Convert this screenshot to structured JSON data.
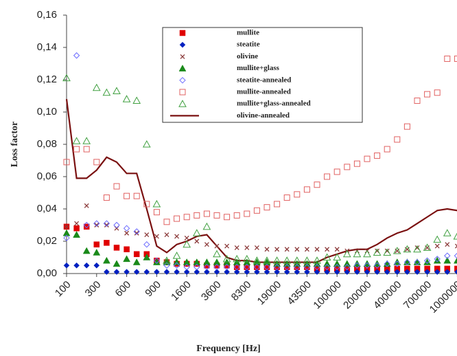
{
  "chart_data": {
    "type": "line",
    "y_label": "Loss factor",
    "x_label": "Frequency [Hz]",
    "categories": [
      "100",
      null,
      null,
      "300",
      null,
      null,
      "600",
      null,
      null,
      "900",
      null,
      null,
      "1600",
      null,
      null,
      "3600",
      null,
      null,
      "8300",
      null,
      null,
      "19000",
      null,
      null,
      "43500",
      null,
      null,
      "100000",
      null,
      null,
      "200000",
      null,
      null,
      "400000",
      null,
      null,
      "700000",
      null,
      null,
      "1000000"
    ],
    "ylim": [
      0,
      0.16
    ],
    "yticks": [
      {
        "value": 0,
        "label": "0,00"
      },
      {
        "value": 0.02,
        "label": "0,02"
      },
      {
        "value": 0.04,
        "label": "0,04"
      },
      {
        "value": 0.06,
        "label": "0,06"
      },
      {
        "value": 0.08,
        "label": "0,08"
      },
      {
        "value": 0.1,
        "label": "0,10"
      },
      {
        "value": 0.12,
        "label": "0,12"
      },
      {
        "value": 0.14,
        "label": "0,14"
      },
      {
        "value": 0.16,
        "label": "0,16"
      }
    ],
    "grid": false,
    "legend": "top-center",
    "series": [
      {
        "name": "mullite",
        "color": "#e00000",
        "marker": "square",
        "values": [
          0.029,
          0.028,
          0.029,
          0.018,
          0.019,
          0.016,
          0.015,
          0.012,
          0.012,
          0.008,
          0.007,
          0.006,
          0.006,
          0.006,
          0.005,
          0.005,
          0.005,
          0.004,
          0.004,
          0.004,
          0.004,
          0.004,
          0.004,
          0.004,
          0.004,
          0.003,
          0.003,
          0.003,
          0.003,
          0.003,
          0.003,
          0.003,
          0.003,
          0.003,
          0.003,
          0.003,
          0.003,
          0.003,
          0.003,
          0.003
        ]
      },
      {
        "name": "steatite",
        "color": "#0020c0",
        "marker": "diamond",
        "values": [
          0.005,
          0.005,
          0.005,
          0.005,
          0.001,
          0.001,
          0.001,
          0.001,
          0.001,
          0.001,
          0.001,
          0.001,
          0.001,
          0.001,
          0.001,
          0.001,
          0.001,
          0.001,
          0.001,
          0.001,
          0.001,
          0.001,
          0.001,
          0.001,
          0.001,
          0.001,
          0.001,
          0.001,
          0.001,
          0.001,
          0.001,
          0.001,
          0.001,
          0.001,
          0.001,
          0.001,
          0.001,
          0.001,
          0.001,
          0.001
        ]
      },
      {
        "name": "olivine",
        "color": "#8b3a3a",
        "marker": "cross",
        "values": [
          0.029,
          0.031,
          0.042,
          0.03,
          0.03,
          0.028,
          0.025,
          0.025,
          0.024,
          0.023,
          0.024,
          0.023,
          0.022,
          0.02,
          0.018,
          0.017,
          0.017,
          0.016,
          0.016,
          0.016,
          0.015,
          0.015,
          0.015,
          0.015,
          0.015,
          0.015,
          0.015,
          0.015,
          0.014,
          0.014,
          0.014,
          0.014,
          0.014,
          0.014,
          0.015,
          0.016,
          0.016,
          0.017,
          0.018,
          0.017
        ]
      },
      {
        "name": "mullite+glass",
        "color": "#1a8a1a",
        "marker": "triangle",
        "values": [
          0.025,
          0.024,
          0.014,
          0.013,
          0.008,
          0.006,
          0.009,
          0.007,
          0.01,
          0.007,
          0.007,
          0.007,
          0.007,
          0.007,
          0.007,
          0.007,
          0.007,
          0.007,
          0.007,
          0.007,
          0.007,
          0.006,
          0.006,
          0.006,
          0.006,
          0.006,
          0.006,
          0.006,
          0.006,
          0.006,
          0.006,
          0.006,
          0.006,
          0.007,
          0.007,
          0.007,
          0.007,
          0.008,
          0.008,
          0.008
        ]
      },
      {
        "name": "steatite-annealed",
        "color": "#6a6aff",
        "marker": "diamond-open",
        "values": [
          0.022,
          0.135,
          0.03,
          0.031,
          0.031,
          0.03,
          0.028,
          0.026,
          0.018,
          0.008,
          0.005,
          0.005,
          0.004,
          0.004,
          0.004,
          0.004,
          0.004,
          0.004,
          0.004,
          0.004,
          0.004,
          0.004,
          0.004,
          0.004,
          0.004,
          0.004,
          0.004,
          0.004,
          0.004,
          0.005,
          0.005,
          0.005,
          0.006,
          0.006,
          0.007,
          0.007,
          0.008,
          0.009,
          0.011,
          0.011
        ]
      },
      {
        "name": "mullite-annealed",
        "color": "#e06060",
        "marker": "square-open",
        "values": [
          0.069,
          0.077,
          0.077,
          0.069,
          0.047,
          0.054,
          0.048,
          0.048,
          0.043,
          0.038,
          0.032,
          0.034,
          0.035,
          0.036,
          0.037,
          0.036,
          0.035,
          0.036,
          0.037,
          0.039,
          0.041,
          0.043,
          0.047,
          0.049,
          0.052,
          0.055,
          0.06,
          0.063,
          0.066,
          0.068,
          0.071,
          0.073,
          0.077,
          0.083,
          0.091,
          0.107,
          0.111,
          0.112,
          0.133,
          0.133
        ]
      },
      {
        "name": "mullite+glass-annealed",
        "color": "#40a040",
        "marker": "triangle-open",
        "values": [
          0.121,
          0.082,
          0.082,
          0.115,
          0.112,
          0.113,
          0.108,
          0.107,
          0.08,
          0.043,
          0.008,
          0.011,
          0.018,
          0.025,
          0.029,
          0.012,
          0.009,
          0.009,
          0.009,
          0.008,
          0.008,
          0.008,
          0.008,
          0.008,
          0.008,
          0.008,
          0.01,
          0.01,
          0.012,
          0.012,
          0.012,
          0.013,
          0.013,
          0.014,
          0.015,
          0.015,
          0.016,
          0.021,
          0.025,
          0.023
        ]
      },
      {
        "name": "olivine-annealed",
        "color": "#7a1010",
        "marker": "line",
        "values": [
          0.108,
          0.059,
          0.059,
          0.064,
          0.072,
          0.069,
          0.062,
          0.062,
          0.04,
          0.017,
          0.013,
          0.018,
          0.02,
          0.023,
          0.024,
          0.017,
          0.01,
          0.008,
          0.008,
          0.007,
          0.007,
          0.007,
          0.007,
          0.007,
          0.007,
          0.007,
          0.01,
          0.012,
          0.014,
          0.015,
          0.015,
          0.018,
          0.022,
          0.025,
          0.027,
          0.031,
          0.035,
          0.039,
          0.04,
          0.039
        ]
      }
    ]
  }
}
